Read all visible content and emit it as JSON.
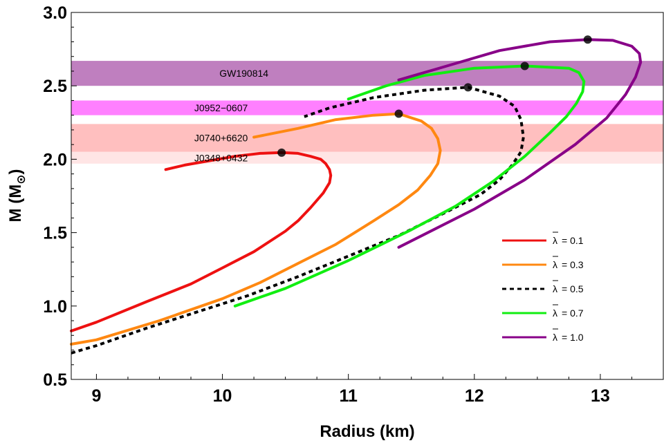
{
  "chart_data": {
    "type": "line",
    "title": "",
    "xlabel": "Radius (km)",
    "ylabel_main": "M (M",
    "ylabel_sub": "⊙",
    "ylabel_close": ")",
    "xlim": [
      8.8,
      13.5
    ],
    "ylim": [
      0.5,
      3.0
    ],
    "xticks": [
      9,
      10,
      11,
      12,
      13
    ],
    "xtick_labels": [
      "9",
      "10",
      "11",
      "12",
      "13"
    ],
    "yticks": [
      0.5,
      1.0,
      1.5,
      2.0,
      2.5,
      3.0
    ],
    "ytick_labels": [
      "0.5",
      "1.0",
      "1.5",
      "2.0",
      "2.5",
      "3.0"
    ],
    "bands": [
      {
        "label": "GW190814",
        "ymin": 2.5,
        "ymax": 2.67,
        "color": "#bf7fbf"
      },
      {
        "label": "J0952−0607",
        "ymin": 2.3,
        "ymax": 2.4,
        "color": "#ff80ff"
      },
      {
        "label": "J0740+6620",
        "ymin": 2.05,
        "ymax": 2.24,
        "color": "#ffbfbf"
      },
      {
        "label": "J0348+0432",
        "ymin": 1.97,
        "ymax": 2.05,
        "color": "#ffe5e5"
      }
    ],
    "band_label_x": [
      10.8,
      10.6,
      10.6,
      10.6
    ],
    "series": [
      {
        "name": "λ̄ = 0.1",
        "legend_label": "= 0.1",
        "color": "#ee1111",
        "dash": false,
        "x": [
          8.8,
          9.0,
          9.4,
          9.75,
          10.0,
          10.25,
          10.5,
          10.6,
          10.7,
          10.8,
          10.85,
          10.86,
          10.85,
          10.82,
          10.78,
          10.7,
          10.6,
          10.47,
          10.3,
          10.1,
          9.9,
          9.7,
          9.55
        ],
        "y": [
          0.83,
          0.89,
          1.03,
          1.15,
          1.26,
          1.37,
          1.51,
          1.58,
          1.67,
          1.77,
          1.84,
          1.89,
          1.93,
          1.97,
          2.0,
          2.02,
          2.04,
          2.045,
          2.04,
          2.02,
          1.99,
          1.96,
          1.93
        ],
        "max": [
          10.47,
          2.045
        ]
      },
      {
        "name": "λ̄ = 0.3",
        "legend_label": "= 0.3",
        "color": "#ff8811",
        "dash": false,
        "x": [
          8.8,
          9.0,
          9.5,
          10.0,
          10.3,
          10.6,
          10.9,
          11.2,
          11.4,
          11.55,
          11.65,
          11.71,
          11.73,
          11.71,
          11.66,
          11.58,
          11.4,
          11.2,
          10.9,
          10.6,
          10.25
        ],
        "y": [
          0.74,
          0.77,
          0.9,
          1.05,
          1.16,
          1.29,
          1.42,
          1.58,
          1.69,
          1.79,
          1.89,
          1.97,
          2.06,
          2.14,
          2.21,
          2.26,
          2.31,
          2.3,
          2.27,
          2.21,
          2.15
        ],
        "max": [
          11.4,
          2.31
        ]
      },
      {
        "name": "λ̄ = 0.5",
        "legend_label": "= 0.5",
        "color": "#000000",
        "dash": true,
        "x": [
          8.8,
          9.0,
          9.4,
          9.8,
          10.2,
          10.6,
          11.0,
          11.4,
          11.8,
          12.05,
          12.2,
          12.3,
          12.37,
          12.39,
          12.37,
          12.32,
          12.2,
          11.95,
          11.6,
          11.2,
          10.85,
          10.65
        ],
        "y": [
          0.68,
          0.73,
          0.85,
          0.96,
          1.07,
          1.2,
          1.34,
          1.48,
          1.65,
          1.76,
          1.86,
          1.96,
          2.05,
          2.15,
          2.27,
          2.36,
          2.43,
          2.49,
          2.47,
          2.42,
          2.35,
          2.29
        ],
        "max": [
          11.95,
          2.49
        ]
      },
      {
        "name": "λ̄ = 0.7",
        "legend_label": "= 0.7",
        "color": "#11ee11",
        "dash": false,
        "x": [
          10.1,
          10.5,
          11.0,
          11.5,
          11.85,
          12.15,
          12.4,
          12.6,
          12.73,
          12.81,
          12.86,
          12.87,
          12.83,
          12.75,
          12.4,
          12.0,
          11.6,
          11.3,
          11.0
        ],
        "y": [
          1.0,
          1.12,
          1.31,
          1.52,
          1.68,
          1.85,
          2.02,
          2.18,
          2.29,
          2.38,
          2.46,
          2.53,
          2.59,
          2.62,
          2.635,
          2.62,
          2.57,
          2.5,
          2.41
        ],
        "max": [
          12.4,
          2.635
        ]
      },
      {
        "name": "λ̄ = 1.0",
        "legend_label": "= 1.0",
        "color": "#880088",
        "dash": false,
        "x": [
          11.4,
          11.7,
          12.0,
          12.4,
          12.8,
          13.05,
          13.2,
          13.28,
          13.32,
          13.31,
          13.25,
          13.1,
          12.9,
          12.6,
          12.2,
          11.8,
          11.4
        ],
        "y": [
          1.4,
          1.53,
          1.66,
          1.86,
          2.1,
          2.28,
          2.44,
          2.56,
          2.66,
          2.72,
          2.77,
          2.81,
          2.815,
          2.8,
          2.74,
          2.64,
          2.54
        ],
        "max": [
          12.9,
          2.815
        ]
      }
    ],
    "legend_position": "bottom-right",
    "legend_symbol": "λ"
  }
}
